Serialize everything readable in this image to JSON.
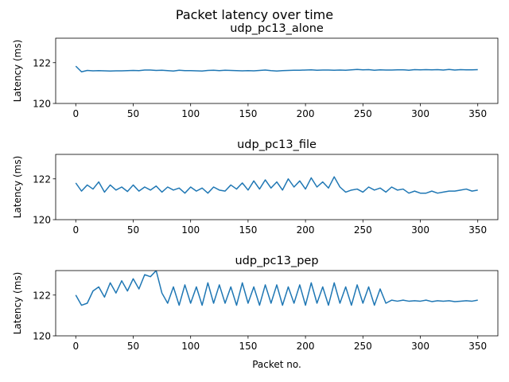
{
  "figure": {
    "suptitle": "Packet latency over time",
    "line_color": "#1f77b4"
  },
  "chart_data": [
    {
      "type": "line",
      "title": "udp_pc13_alone",
      "xlabel": "",
      "ylabel": "Latency (ms)",
      "xlim": [
        -17.5,
        367.5
      ],
      "ylim": [
        120,
        123.2
      ],
      "xticks": [
        0,
        50,
        100,
        150,
        200,
        250,
        300,
        350
      ],
      "yticks": [
        120,
        122
      ],
      "grid": false,
      "x_start": 0,
      "x_step": 5,
      "values": [
        121.83,
        121.55,
        121.62,
        121.6,
        121.61,
        121.6,
        121.59,
        121.6,
        121.6,
        121.61,
        121.62,
        121.61,
        121.64,
        121.64,
        121.62,
        121.63,
        121.61,
        121.59,
        121.63,
        121.61,
        121.61,
        121.6,
        121.59,
        121.62,
        121.63,
        121.61,
        121.63,
        121.62,
        121.61,
        121.6,
        121.61,
        121.6,
        121.62,
        121.64,
        121.61,
        121.59,
        121.61,
        121.62,
        121.63,
        121.63,
        121.64,
        121.65,
        121.63,
        121.64,
        121.64,
        121.63,
        121.64,
        121.63,
        121.65,
        121.67,
        121.65,
        121.66,
        121.63,
        121.65,
        121.64,
        121.64,
        121.65,
        121.65,
        121.63,
        121.66,
        121.65,
        121.66,
        121.65,
        121.66,
        121.64,
        121.67,
        121.64,
        121.66,
        121.65,
        121.65,
        121.66
      ]
    },
    {
      "type": "line",
      "title": "udp_pc13_file",
      "xlabel": "",
      "ylabel": "Latency (ms)",
      "xlim": [
        -17.5,
        367.5
      ],
      "ylim": [
        120,
        123.2
      ],
      "xticks": [
        0,
        50,
        100,
        150,
        200,
        250,
        300,
        350
      ],
      "yticks": [
        120,
        122
      ],
      "grid": false,
      "x_start": 0,
      "x_step": 5,
      "values": [
        121.8,
        121.4,
        121.7,
        121.5,
        121.85,
        121.35,
        121.7,
        121.45,
        121.6,
        121.38,
        121.7,
        121.4,
        121.6,
        121.45,
        121.65,
        121.35,
        121.6,
        121.45,
        121.55,
        121.3,
        121.6,
        121.4,
        121.55,
        121.3,
        121.6,
        121.45,
        121.4,
        121.7,
        121.5,
        121.8,
        121.45,
        121.9,
        121.5,
        121.95,
        121.55,
        121.85,
        121.45,
        122.0,
        121.6,
        121.9,
        121.5,
        122.05,
        121.6,
        121.85,
        121.55,
        122.1,
        121.6,
        121.35,
        121.45,
        121.5,
        121.35,
        121.6,
        121.45,
        121.55,
        121.35,
        121.6,
        121.45,
        121.5,
        121.3,
        121.4,
        121.3,
        121.3,
        121.4,
        121.3,
        121.35,
        121.4,
        121.4,
        121.45,
        121.5,
        121.4,
        121.45
      ]
    },
    {
      "type": "line",
      "title": "udp_pc13_pep",
      "xlabel": "Packet no.",
      "ylabel": "Latency (ms)",
      "xlim": [
        -17.5,
        367.5
      ],
      "ylim": [
        120,
        123.2
      ],
      "xticks": [
        0,
        50,
        100,
        150,
        200,
        250,
        300,
        350
      ],
      "yticks": [
        120,
        122
      ],
      "grid": false,
      "x_start": 0,
      "x_step": 5,
      "values": [
        122.0,
        121.5,
        121.6,
        122.2,
        122.4,
        121.9,
        122.6,
        122.1,
        122.7,
        122.2,
        122.8,
        122.3,
        123.0,
        122.9,
        123.2,
        122.1,
        121.6,
        122.4,
        121.5,
        122.5,
        121.6,
        122.4,
        121.5,
        122.6,
        121.6,
        122.5,
        121.6,
        122.4,
        121.5,
        122.6,
        121.6,
        122.4,
        121.5,
        122.5,
        121.6,
        122.5,
        121.5,
        122.4,
        121.6,
        122.5,
        121.5,
        122.6,
        121.6,
        122.4,
        121.5,
        122.6,
        121.6,
        122.4,
        121.5,
        122.5,
        121.6,
        122.4,
        121.5,
        122.3,
        121.6,
        121.75,
        121.7,
        121.75,
        121.7,
        121.72,
        121.7,
        121.75,
        121.68,
        121.72,
        121.7,
        121.72,
        121.68,
        121.7,
        121.72,
        121.7,
        121.75
      ]
    }
  ]
}
